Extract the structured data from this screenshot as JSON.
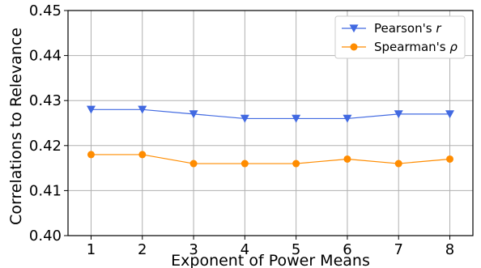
{
  "chart_data": {
    "type": "line",
    "x": [
      1,
      2,
      3,
      4,
      5,
      6,
      7,
      8
    ],
    "xticks": [
      "1",
      "2",
      "3",
      "4",
      "5",
      "6",
      "7",
      "8"
    ],
    "yticks": [
      "0.40",
      "0.41",
      "0.42",
      "0.43",
      "0.44",
      "0.45"
    ],
    "ylim": [
      0.4,
      0.45
    ],
    "xlim": [
      0.55,
      8.45
    ],
    "xlabel": "Exponent of Power Means",
    "ylabel": "Correlations to Relevance",
    "grid": true,
    "legend_position": "top-right",
    "series": [
      {
        "name": "Pearson's r",
        "label_plain": "Pearson's ",
        "label_italic": "r",
        "color": "#4169e1",
        "marker": "triangle-down",
        "values": [
          0.428,
          0.428,
          0.427,
          0.426,
          0.426,
          0.426,
          0.427,
          0.427
        ]
      },
      {
        "name": "Spearman's ρ",
        "label_plain": "Spearman's ",
        "label_italic": "ρ",
        "color": "#ff8c00",
        "marker": "circle",
        "values": [
          0.418,
          0.418,
          0.416,
          0.416,
          0.416,
          0.417,
          0.416,
          0.417
        ]
      }
    ]
  }
}
